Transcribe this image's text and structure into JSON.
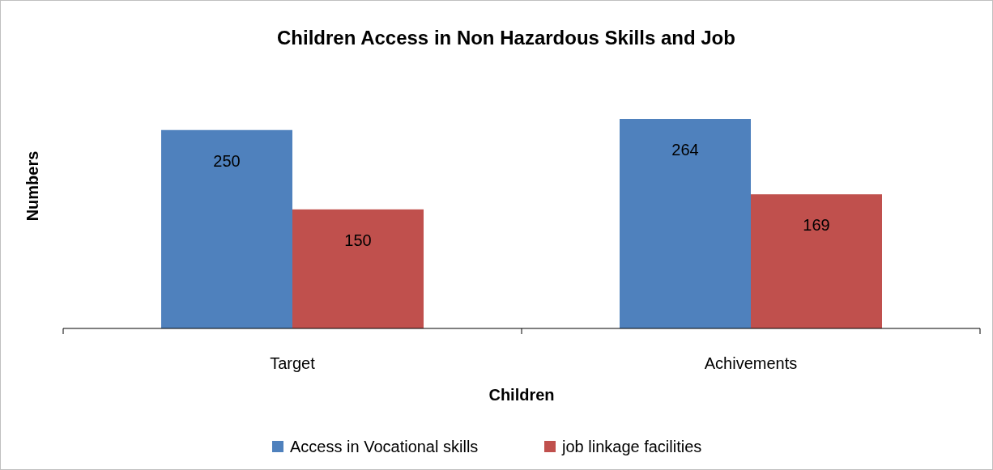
{
  "chart_data": {
    "type": "bar",
    "title": "Children Access in Non Hazardous Skills and Job",
    "xlabel": "Children",
    "ylabel": "Numbers",
    "categories": [
      "Target",
      "Achivements"
    ],
    "series": [
      {
        "name": "Access in Vocational skills",
        "color": "#4f81bd",
        "values": [
          250,
          264
        ]
      },
      {
        "name": "job linkage facilities",
        "color": "#c0504d",
        "values": [
          150,
          169
        ]
      }
    ],
    "data_labels": true,
    "legend": "bottom"
  }
}
